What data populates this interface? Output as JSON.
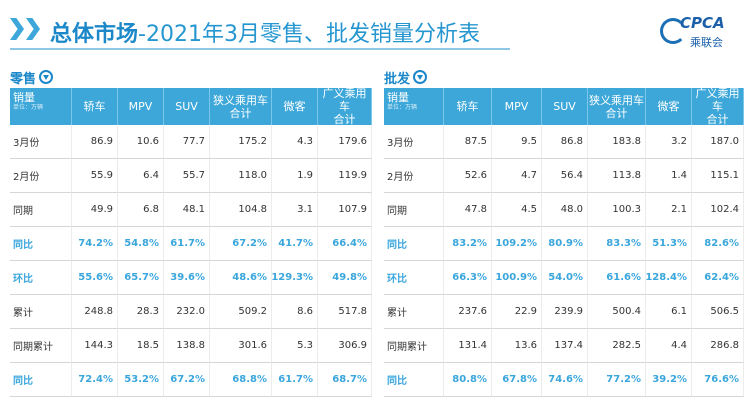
{
  "header": {
    "title_main": "总体市场",
    "title_rest": "-2021年3月零售、批发销量分析表",
    "logo_text": "CPCA",
    "logo_cn": "乘联会"
  },
  "tables": {
    "retail": {
      "title": "零售",
      "header": {
        "first_label": "销量",
        "first_unit": "单位：万辆",
        "columns": [
          [
            "轿车"
          ],
          [
            "MPV"
          ],
          [
            "SUV"
          ],
          [
            "狭义乘用车",
            "合计"
          ],
          [
            "微客"
          ],
          [
            "广义乘用车",
            "合计"
          ]
        ]
      },
      "rows": [
        {
          "label": "3月份",
          "pct": false,
          "values": [
            "86.9",
            "10.6",
            "77.7",
            "175.2",
            "4.3",
            "179.6"
          ]
        },
        {
          "label": "2月份",
          "pct": false,
          "values": [
            "55.9",
            "6.4",
            "55.7",
            "118.0",
            "1.9",
            "119.9"
          ]
        },
        {
          "label": "同期",
          "pct": false,
          "values": [
            "49.9",
            "6.8",
            "48.1",
            "104.8",
            "3.1",
            "107.9"
          ]
        },
        {
          "label": "同比",
          "pct": true,
          "values": [
            "74.2%",
            "54.8%",
            "61.7%",
            "67.2%",
            "41.7%",
            "66.4%"
          ]
        },
        {
          "label": "环比",
          "pct": true,
          "values": [
            "55.6%",
            "65.7%",
            "39.6%",
            "48.6%",
            "129.3%",
            "49.8%"
          ]
        },
        {
          "label": "累计",
          "pct": false,
          "values": [
            "248.8",
            "28.3",
            "232.0",
            "509.2",
            "8.6",
            "517.8"
          ]
        },
        {
          "label": "同期累计",
          "pct": false,
          "values": [
            "144.3",
            "18.5",
            "138.8",
            "301.6",
            "5.3",
            "306.9"
          ]
        },
        {
          "label": "同比",
          "pct": true,
          "values": [
            "72.4%",
            "53.2%",
            "67.2%",
            "68.8%",
            "61.7%",
            "68.7%"
          ]
        }
      ]
    },
    "wholesale": {
      "title": "批发",
      "header": {
        "first_label": "销量",
        "first_unit": "单位：万辆",
        "columns": [
          [
            "轿车"
          ],
          [
            "MPV"
          ],
          [
            "SUV"
          ],
          [
            "狭义乘用车",
            "合计"
          ],
          [
            "微客"
          ],
          [
            "广义乘用车",
            "合计"
          ]
        ]
      },
      "rows": [
        {
          "label": "3月份",
          "pct": false,
          "values": [
            "87.5",
            "9.5",
            "86.8",
            "183.8",
            "3.2",
            "187.0"
          ]
        },
        {
          "label": "2月份",
          "pct": false,
          "values": [
            "52.6",
            "4.7",
            "56.4",
            "113.8",
            "1.4",
            "115.1"
          ]
        },
        {
          "label": "同期",
          "pct": false,
          "values": [
            "47.8",
            "4.5",
            "48.0",
            "100.3",
            "2.1",
            "102.4"
          ]
        },
        {
          "label": "同比",
          "pct": true,
          "values": [
            "83.2%",
            "109.2%",
            "80.9%",
            "83.3%",
            "51.3%",
            "82.6%"
          ]
        },
        {
          "label": "环比",
          "pct": true,
          "values": [
            "66.3%",
            "100.9%",
            "54.0%",
            "61.6%",
            "128.4%",
            "62.4%"
          ]
        },
        {
          "label": "累计",
          "pct": false,
          "values": [
            "237.6",
            "22.9",
            "239.9",
            "500.4",
            "6.1",
            "506.5"
          ]
        },
        {
          "label": "同期累计",
          "pct": false,
          "values": [
            "131.4",
            "13.6",
            "137.4",
            "282.5",
            "4.4",
            "286.8"
          ]
        },
        {
          "label": "同比",
          "pct": true,
          "values": [
            "80.8%",
            "67.8%",
            "74.6%",
            "77.2%",
            "39.2%",
            "76.6%"
          ]
        }
      ]
    }
  },
  "colors": {
    "accent": "#3ca7d8",
    "title_blue": "#1c88c9",
    "pct_text": "#3aa6dc"
  }
}
